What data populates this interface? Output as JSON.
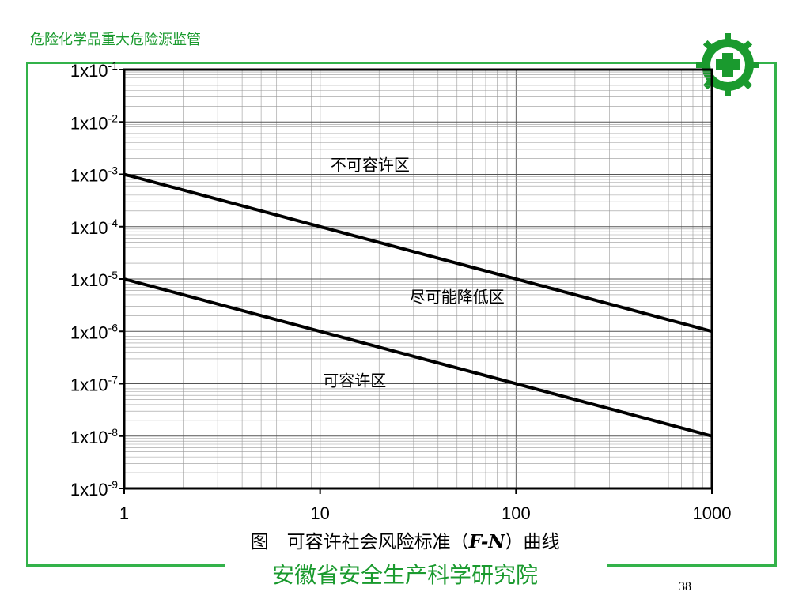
{
  "header": {
    "title": "危险化学品重大危险源监管"
  },
  "caption": {
    "prefix": "图　可容许社会风险标准（",
    "symbol": "F-N",
    "suffix": "）曲线"
  },
  "footer": {
    "organization": "安徽省安全生产科学研究院",
    "page_number": "38"
  },
  "colors": {
    "accent": "#1a9a2e",
    "frame": "#33b24a",
    "plot": "#000000"
  },
  "logo": {
    "icon": "safety-cross-gear-icon"
  },
  "chart_data": {
    "type": "line",
    "x_scale": "log",
    "y_scale": "log",
    "xlim": [
      1,
      1000
    ],
    "ylim": [
      1e-09,
      0.1
    ],
    "grid": true,
    "x_ticks": [
      {
        "value": 1,
        "label": "1"
      },
      {
        "value": 10,
        "label": "10"
      },
      {
        "value": 100,
        "label": "100"
      },
      {
        "value": 1000,
        "label": "1000"
      }
    ],
    "y_ticks": [
      {
        "value": 1e-09,
        "base": "1x10",
        "exp": "-9"
      },
      {
        "value": 1e-08,
        "base": "1x10",
        "exp": "-8"
      },
      {
        "value": 1e-07,
        "base": "1x10",
        "exp": "-7"
      },
      {
        "value": 1e-06,
        "base": "1x10",
        "exp": "-6"
      },
      {
        "value": 1e-05,
        "base": "1x10",
        "exp": "-5"
      },
      {
        "value": 0.0001,
        "base": "1x10",
        "exp": "-4"
      },
      {
        "value": 0.001,
        "base": "1x10",
        "exp": "-3"
      },
      {
        "value": 0.01,
        "base": "1x10",
        "exp": "-2"
      },
      {
        "value": 0.1,
        "base": "1x10",
        "exp": "-1"
      }
    ],
    "series": [
      {
        "x": [
          1,
          1000
        ],
        "y": [
          0.001,
          1e-06
        ]
      },
      {
        "x": [
          1,
          1000
        ],
        "y": [
          1e-05,
          1e-08
        ]
      }
    ],
    "annotations": [
      {
        "text": "不可容许区",
        "x": 18,
        "y": 0.0012
      },
      {
        "text": "尽可能降低区",
        "x": 50,
        "y": 3.6e-06
      },
      {
        "text": "可容许区",
        "x": 15,
        "y": 9e-08
      }
    ]
  }
}
